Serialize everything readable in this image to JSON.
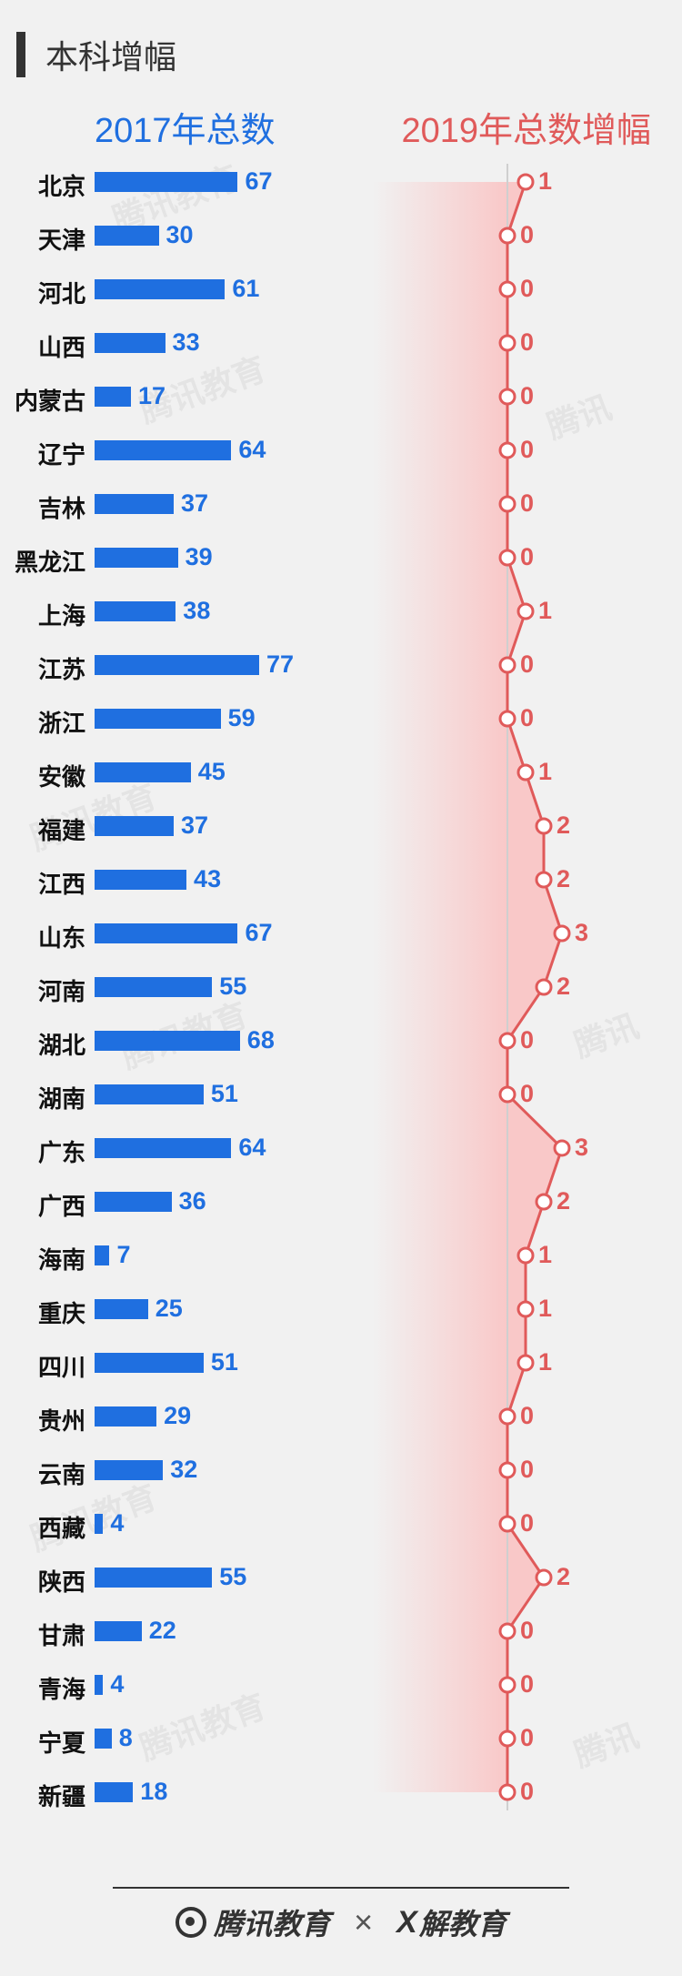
{
  "header": {
    "title": "本科增幅"
  },
  "chart_data": {
    "type": "bar",
    "left_header": "2017年总数",
    "right_header": "2019年总数增幅",
    "categories": [
      "北京",
      "天津",
      "河北",
      "山西",
      "内蒙古",
      "辽宁",
      "吉林",
      "黑龙江",
      "上海",
      "江苏",
      "浙江",
      "安徽",
      "福建",
      "江西",
      "山东",
      "河南",
      "湖北",
      "湖南",
      "广东",
      "广西",
      "海南",
      "重庆",
      "四川",
      "贵州",
      "云南",
      "西藏",
      "陕西",
      "甘肃",
      "青海",
      "宁夏",
      "新疆"
    ],
    "series": [
      {
        "values": [
          67,
          30,
          61,
          33,
          17,
          64,
          37,
          39,
          38,
          77,
          59,
          45,
          37,
          43,
          67,
          55,
          68,
          51,
          64,
          36,
          7,
          25,
          51,
          29,
          32,
          4,
          55,
          22,
          4,
          8,
          18
        ]
      },
      {
        "values": [
          1,
          0,
          0,
          0,
          0,
          0,
          0,
          0,
          1,
          0,
          0,
          1,
          2,
          2,
          3,
          2,
          0,
          0,
          3,
          2,
          1,
          1,
          1,
          0,
          0,
          0,
          2,
          0,
          0,
          0,
          0
        ]
      }
    ],
    "colors": {
      "bar": "#1f6fe0",
      "line": "#e05a5a",
      "fill": "#f9c8c8"
    }
  },
  "footer": {
    "brand1": "腾讯教育",
    "separator": "×",
    "brand2": "解教育"
  }
}
